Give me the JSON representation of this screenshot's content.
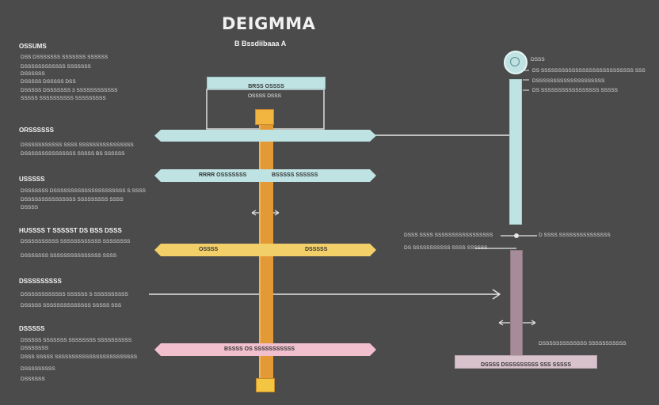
{
  "diagram": {
    "title": "DEIGMMA",
    "subtitle": "B Bssdiibaaa A",
    "left_sections": [
      {
        "heading": "OSSUMS",
        "lines": [
          "DSS DSSSSSSS SSSSSSS SSSSSS",
          "DSSSSSSSSSSSS SSSSSSS",
          "DSSSSSS",
          "DSSSSS DSSSSS DSS",
          "DSSSSS DSSSSSSS 3 SSSSSSSSSSSS",
          "SSSSS SSSSSSSSSS SSSSSSSSS"
        ]
      },
      {
        "heading": "ORSSSSSS",
        "lines": [
          "DSSSSSSSSSSS SSSS SSSSSSSSSSSSSSSS",
          "DSSSSSSSSSSSSSSS SSSSS BS SSSSSS"
        ]
      },
      {
        "heading": "USSSSS",
        "lines": [
          "DSSSSSSS DSSSSSSSSSSSSSSSSSSSSS S SSSS",
          "DSSSSSSSSSSSSSSS SSSSSSSSS SSSS",
          "DSSSS"
        ]
      },
      {
        "heading": "HUSSSS T SSSSST DS BSS DSSS",
        "lines": [
          "DSSSSSSSSSS SSSSSSSSSSSS SSSSSSSS",
          "DSSSSSSS SSSSSSSSSSSSSSS SSSS"
        ]
      },
      {
        "heading": "DSSSSSSSSS",
        "lines": [
          "DSSSSSSSSSSSS SSSSSS S SSSSSSSSSS",
          "DSSSSS SSSSSSSSSSSSSS SSSSS SSS"
        ]
      },
      {
        "heading": "DSSSSS",
        "lines": [
          "DSSSSS SSSSSSS SSSSSSSS SSSSSSSSSS",
          "DSSSSSSS",
          "DSSS SSSSS SSSSSSSSSSSSSSSSSSSSSSSS",
          "DSSSSSSSSS",
          "DSSSSSS"
        ]
      }
    ],
    "top_box_label": "BRSS OSSSS",
    "top_box_sub": "OSSSS DSSS",
    "bars": [
      {
        "left": "",
        "right": ""
      },
      {
        "left": "RRRR OSSSSSSS",
        "right": "BSSSSS SSSSSS"
      },
      {
        "left": "OSSSS",
        "right": "DSSSSS"
      },
      {
        "left": "BSSSS OS SSSSSSSSSSS",
        "right": ""
      }
    ],
    "right_top_lines": [
      "DSSS",
      "DS SSSSSSSSSSSSSSSSSSSSSSSSSSS SSS",
      "DSSSSSSSSSSSSSSSSSSSS",
      "DS SSSSSSSSSSSSSSSSS SSSSS"
    ],
    "right_mid_lines": [
      "DSSS SSSS SSSSSSSSSSSSSSSSS",
      "D SSSS SSSSSSSSSSSSSSS"
    ],
    "right_mid_line2": "DS SSSSSSSSSSS SSSS SSSSSS",
    "right_bottom_line": "DSSSSSSSSSSSSS SSSSSSSSSSS",
    "right_bottom_box": "DSSSS DSSSSSSSSS SSS SSSSS",
    "colors": {
      "background": "#4b4b4b",
      "teal": "#bfe3e3",
      "orange": "#e9a23c",
      "yellow": "#f2cf68",
      "pink": "#f1bfce",
      "mauve": "#a58c98",
      "lavender": "#d8c2cc"
    }
  }
}
